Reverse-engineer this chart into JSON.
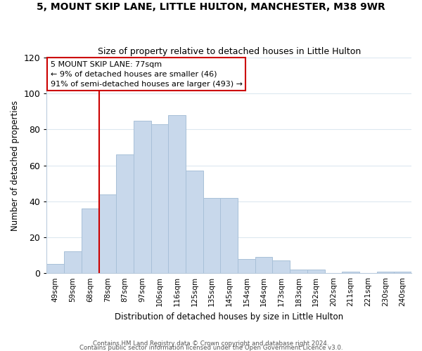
{
  "title": "5, MOUNT SKIP LANE, LITTLE HULTON, MANCHESTER, M38 9WR",
  "subtitle": "Size of property relative to detached houses in Little Hulton",
  "xlabel": "Distribution of detached houses by size in Little Hulton",
  "ylabel": "Number of detached properties",
  "bar_labels": [
    "49sqm",
    "59sqm",
    "68sqm",
    "78sqm",
    "87sqm",
    "97sqm",
    "106sqm",
    "116sqm",
    "125sqm",
    "135sqm",
    "145sqm",
    "154sqm",
    "164sqm",
    "173sqm",
    "183sqm",
    "192sqm",
    "202sqm",
    "211sqm",
    "221sqm",
    "230sqm",
    "240sqm"
  ],
  "bar_values": [
    5,
    12,
    36,
    44,
    66,
    85,
    83,
    88,
    57,
    42,
    42,
    8,
    9,
    7,
    2,
    2,
    0,
    1,
    0,
    1,
    1
  ],
  "bar_color": "#c8d8eb",
  "bar_edge_color": "#a8c0d8",
  "grid_color": "#dce8f0",
  "vline_color": "#cc0000",
  "annotation_box_color": "#cc0000",
  "annotation_lines": [
    "5 MOUNT SKIP LANE: 77sqm",
    "← 9% of detached houses are smaller (46)",
    "91% of semi-detached houses are larger (493) →"
  ],
  "ylim": [
    0,
    120
  ],
  "yticks": [
    0,
    20,
    40,
    60,
    80,
    100,
    120
  ],
  "footnote1": "Contains HM Land Registry data © Crown copyright and database right 2024.",
  "footnote2": "Contains public sector information licensed under the Open Government Licence v3.0.",
  "fig_width": 6.0,
  "fig_height": 5.0,
  "dpi": 100
}
